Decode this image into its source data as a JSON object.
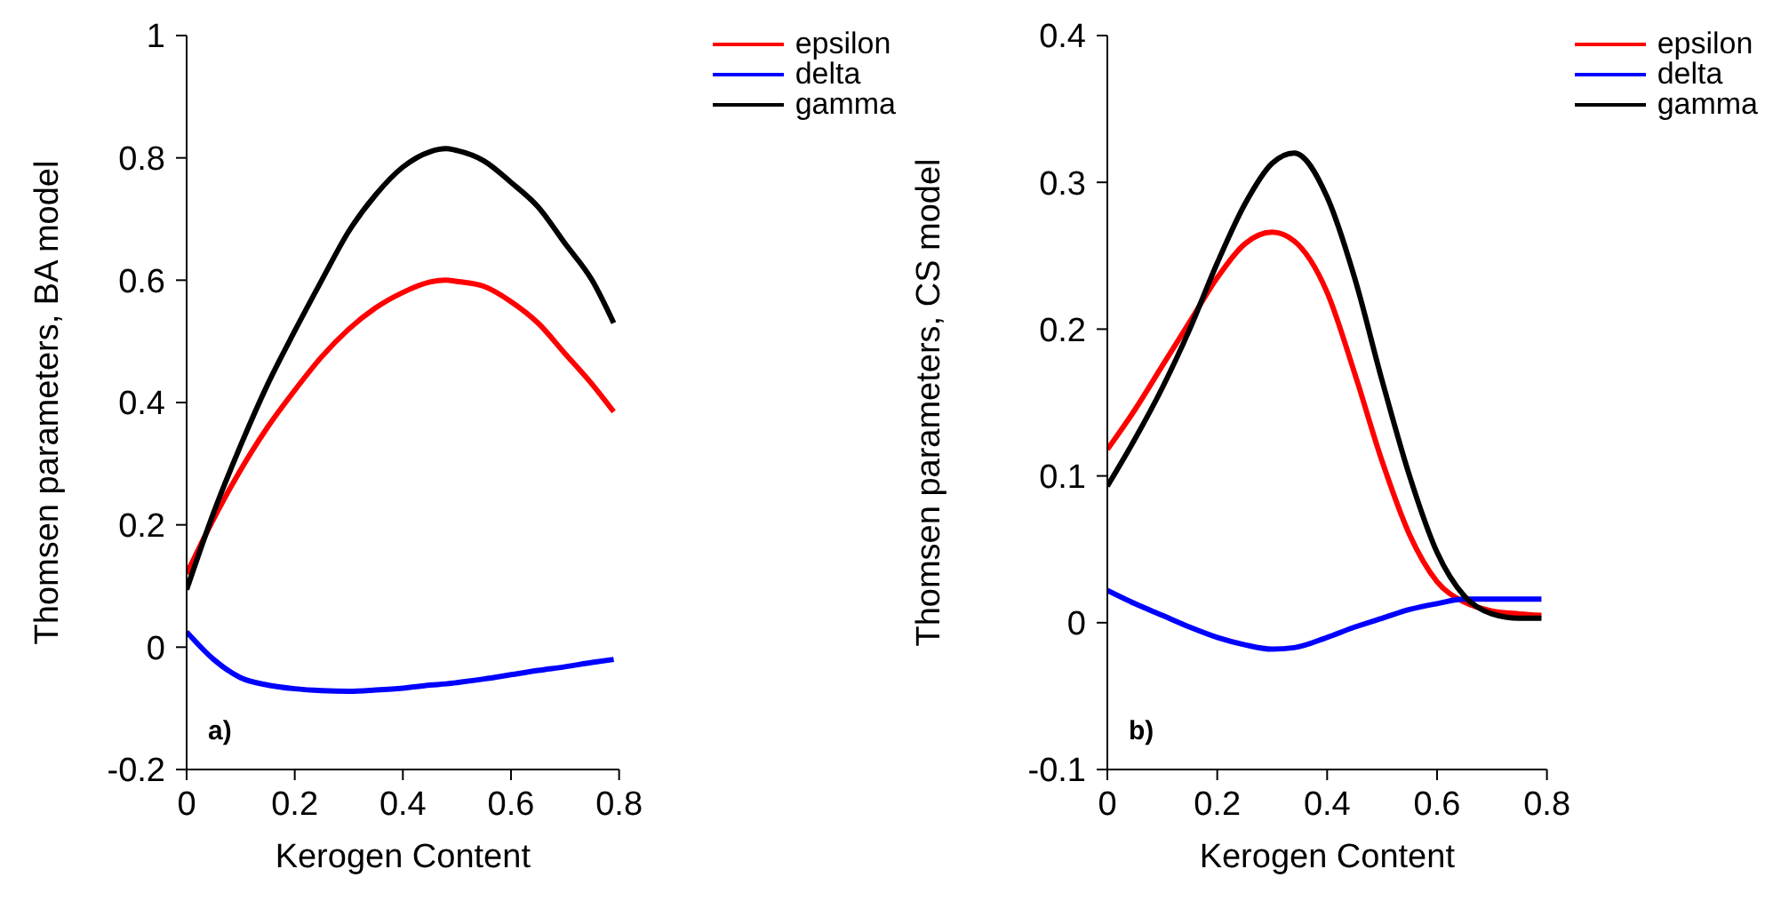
{
  "chart_data": [
    {
      "type": "line",
      "xlabel": "Kerogen Content",
      "ylabel": "Thomsen parameters, BA model",
      "annotations": [
        "a)"
      ],
      "legend": "top right",
      "xlim": [
        0,
        0.8
      ],
      "xticks": [
        0,
        0.2,
        0.4,
        0.6,
        0.8
      ],
      "ylim": [
        -0.2,
        1
      ],
      "yticks": [
        -0.2,
        0,
        0.2,
        0.4,
        0.6,
        0.8,
        1
      ],
      "x": [
        0,
        0.05,
        0.1,
        0.15,
        0.2,
        0.25,
        0.3,
        0.35,
        0.4,
        0.45,
        0.48,
        0.5,
        0.55,
        0.6,
        0.65,
        0.7,
        0.75,
        0.79
      ],
      "series": [
        {
          "name": "epsilon",
          "color": "#ff0000",
          "values": [
            0.12,
            0.21,
            0.29,
            0.36,
            0.42,
            0.475,
            0.52,
            0.555,
            0.58,
            0.597,
            0.6,
            0.598,
            0.59,
            0.565,
            0.53,
            0.48,
            0.43,
            0.385
          ]
        },
        {
          "name": "delta",
          "color": "#0000ff",
          "values": [
            0.025,
            -0.02,
            -0.05,
            -0.062,
            -0.068,
            -0.071,
            -0.072,
            -0.07,
            -0.067,
            -0.062,
            -0.06,
            -0.058,
            -0.052,
            -0.045,
            -0.038,
            -0.032,
            -0.025,
            -0.02
          ]
        },
        {
          "name": "gamma",
          "color": "#000000",
          "values": [
            0.094,
            0.22,
            0.33,
            0.43,
            0.517,
            0.6,
            0.68,
            0.74,
            0.785,
            0.81,
            0.815,
            0.812,
            0.795,
            0.76,
            0.72,
            0.66,
            0.6,
            0.53
          ]
        }
      ]
    },
    {
      "type": "line",
      "xlabel": "Kerogen Content",
      "ylabel": "Thomsen parameters, CS model",
      "annotations": [
        "b)"
      ],
      "legend": "top right",
      "xlim": [
        0,
        0.8
      ],
      "xticks": [
        0,
        0.2,
        0.4,
        0.6,
        0.8
      ],
      "ylim": [
        -0.1,
        0.4
      ],
      "yticks": [
        -0.1,
        0,
        0.1,
        0.2,
        0.3,
        0.4
      ],
      "x": [
        0,
        0.05,
        0.1,
        0.15,
        0.2,
        0.25,
        0.3,
        0.34,
        0.4,
        0.45,
        0.5,
        0.55,
        0.6,
        0.65,
        0.7,
        0.75,
        0.79
      ],
      "series": [
        {
          "name": "epsilon",
          "color": "#ff0000",
          "values": [
            0.118,
            0.145,
            0.175,
            0.205,
            0.235,
            0.258,
            0.266,
            0.26,
            0.225,
            0.17,
            0.11,
            0.06,
            0.028,
            0.014,
            0.008,
            0.006,
            0.005
          ]
        },
        {
          "name": "delta",
          "color": "#0000ff",
          "values": [
            0.022,
            0.013,
            0.005,
            -0.003,
            -0.01,
            -0.015,
            -0.018,
            -0.017,
            -0.01,
            -0.003,
            0.003,
            0.009,
            0.013,
            0.016,
            0.016,
            0.016,
            0.016
          ]
        },
        {
          "name": "gamma",
          "color": "#000000",
          "values": [
            0.093,
            0.125,
            0.16,
            0.2,
            0.245,
            0.285,
            0.313,
            0.32,
            0.29,
            0.235,
            0.165,
            0.1,
            0.048,
            0.018,
            0.006,
            0.003,
            0.003
          ]
        }
      ]
    }
  ]
}
